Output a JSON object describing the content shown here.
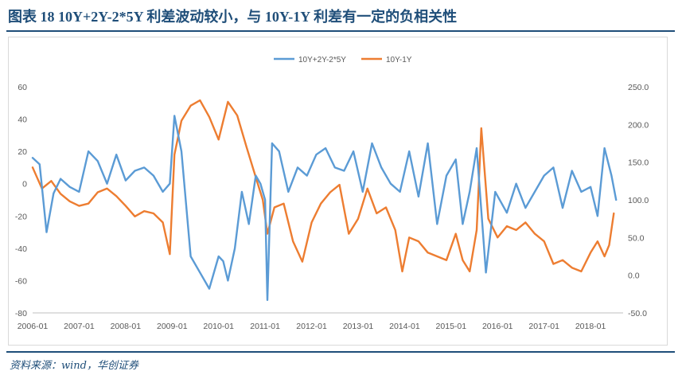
{
  "figure": {
    "title": "图表 18   10Y+2Y-2*5Y 利差波动较小，与 10Y-1Y 利差有一定的负相关性",
    "source": "资料来源：wind，华创证券"
  },
  "colors": {
    "s1": "#5b9bd5",
    "s2": "#ed7d31",
    "axis": "#595959",
    "rule": "#1f4e79"
  },
  "chart_data": {
    "type": "line",
    "title": "",
    "xlabel": "",
    "ylabel": "",
    "y2label": "",
    "grid": false,
    "legend_position": "top",
    "x_ticks": [
      "2006-01",
      "2007-01",
      "2008-01",
      "2009-01",
      "2010-01",
      "2011-01",
      "2012-01",
      "2013-01",
      "2014-01",
      "2015-01",
      "2016-01",
      "2017-01",
      "2018-01"
    ],
    "y_left": {
      "range": [
        -80,
        60
      ],
      "ticks": [
        "60",
        "40",
        "20",
        "0",
        "-20",
        "-40",
        "-60",
        "-80"
      ]
    },
    "y_right": {
      "range": [
        -50,
        250
      ],
      "ticks": [
        "250.0",
        "200.0",
        "150.0",
        "100.0",
        "50.0",
        "0.0",
        "-50.0"
      ]
    },
    "series": [
      {
        "name": "10Y+2Y-2*5Y",
        "axis": "left",
        "x": [
          2006.0,
          2006.15,
          2006.3,
          2006.45,
          2006.6,
          2006.8,
          2007.0,
          2007.2,
          2007.4,
          2007.6,
          2007.8,
          2008.0,
          2008.2,
          2008.4,
          2008.6,
          2008.8,
          2008.95,
          2009.05,
          2009.2,
          2009.4,
          2009.6,
          2009.8,
          2010.0,
          2010.1,
          2010.2,
          2010.35,
          2010.5,
          2010.65,
          2010.8,
          2010.9,
          2011.0,
          2011.05,
          2011.15,
          2011.3,
          2011.5,
          2011.7,
          2011.9,
          2012.1,
          2012.3,
          2012.5,
          2012.7,
          2012.9,
          2013.1,
          2013.3,
          2013.5,
          2013.7,
          2013.9,
          2014.1,
          2014.3,
          2014.5,
          2014.7,
          2014.9,
          2015.1,
          2015.25,
          2015.4,
          2015.55,
          2015.75,
          2015.95,
          2016.2,
          2016.4,
          2016.6,
          2016.8,
          2017.0,
          2017.2,
          2017.4,
          2017.6,
          2017.8,
          2018.0,
          2018.15,
          2018.3,
          2018.45,
          2018.55
        ],
        "y": [
          16,
          12,
          -30,
          -6,
          3,
          -2,
          -5,
          20,
          14,
          0,
          18,
          2,
          8,
          10,
          5,
          -5,
          0,
          42,
          20,
          -45,
          -55,
          -65,
          -45,
          -48,
          -60,
          -40,
          -5,
          -25,
          5,
          0,
          -10,
          -72,
          25,
          20,
          -5,
          10,
          5,
          18,
          22,
          10,
          8,
          20,
          -5,
          25,
          10,
          0,
          -5,
          20,
          -8,
          25,
          -25,
          5,
          15,
          -25,
          -5,
          22,
          -55,
          -5,
          -18,
          0,
          -15,
          -5,
          5,
          10,
          -15,
          8,
          -5,
          -2,
          -20,
          22,
          5,
          -10
        ]
      },
      {
        "name": "10Y-1Y",
        "axis": "right",
        "x": [
          2006.0,
          2006.2,
          2006.4,
          2006.6,
          2006.8,
          2007.0,
          2007.2,
          2007.4,
          2007.6,
          2007.8,
          2008.0,
          2008.2,
          2008.4,
          2008.6,
          2008.8,
          2008.95,
          2009.05,
          2009.2,
          2009.4,
          2009.6,
          2009.8,
          2010.0,
          2010.2,
          2010.4,
          2010.6,
          2010.8,
          2010.95,
          2011.05,
          2011.2,
          2011.4,
          2011.6,
          2011.8,
          2012.0,
          2012.2,
          2012.4,
          2012.6,
          2012.8,
          2013.0,
          2013.2,
          2013.4,
          2013.6,
          2013.8,
          2013.95,
          2014.1,
          2014.3,
          2014.5,
          2014.7,
          2014.9,
          2015.1,
          2015.25,
          2015.4,
          2015.55,
          2015.65,
          2015.8,
          2016.0,
          2016.2,
          2016.4,
          2016.6,
          2016.8,
          2017.0,
          2017.2,
          2017.4,
          2017.6,
          2017.8,
          2018.0,
          2018.15,
          2018.3,
          2018.4,
          2018.5
        ],
        "y": [
          143,
          115,
          125,
          108,
          98,
          92,
          95,
          110,
          115,
          105,
          92,
          78,
          85,
          82,
          70,
          28,
          160,
          205,
          225,
          232,
          210,
          180,
          230,
          212,
          170,
          130,
          100,
          55,
          90,
          95,
          45,
          18,
          70,
          95,
          110,
          120,
          55,
          75,
          115,
          82,
          90,
          60,
          5,
          50,
          45,
          30,
          25,
          20,
          55,
          20,
          5,
          60,
          195,
          75,
          50,
          65,
          60,
          70,
          55,
          45,
          15,
          20,
          10,
          5,
          30,
          45,
          25,
          40,
          82
        ]
      }
    ]
  }
}
